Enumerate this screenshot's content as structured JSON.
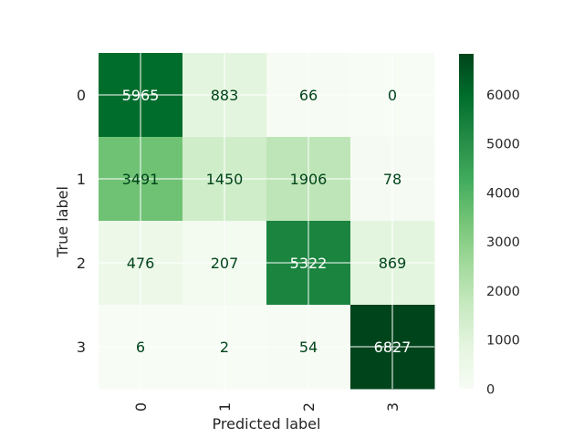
{
  "chart_data": {
    "type": "heatmap",
    "xlabel": "Predicted label",
    "ylabel": "True label",
    "x_categories": [
      "0",
      "1",
      "2",
      "3"
    ],
    "y_categories": [
      "0",
      "1",
      "2",
      "3"
    ],
    "values": [
      [
        5965,
        883,
        66,
        0
      ],
      [
        3491,
        1450,
        1906,
        78
      ],
      [
        476,
        207,
        5322,
        869
      ],
      [
        6,
        2,
        54,
        6827
      ]
    ],
    "colormap": "Greens",
    "colorbar": {
      "range": [
        0,
        6827
      ],
      "ticks": [
        0,
        1000,
        2000,
        3000,
        4000,
        5000,
        6000
      ]
    },
    "grid": true,
    "x_tick_rotation": "vertical"
  }
}
